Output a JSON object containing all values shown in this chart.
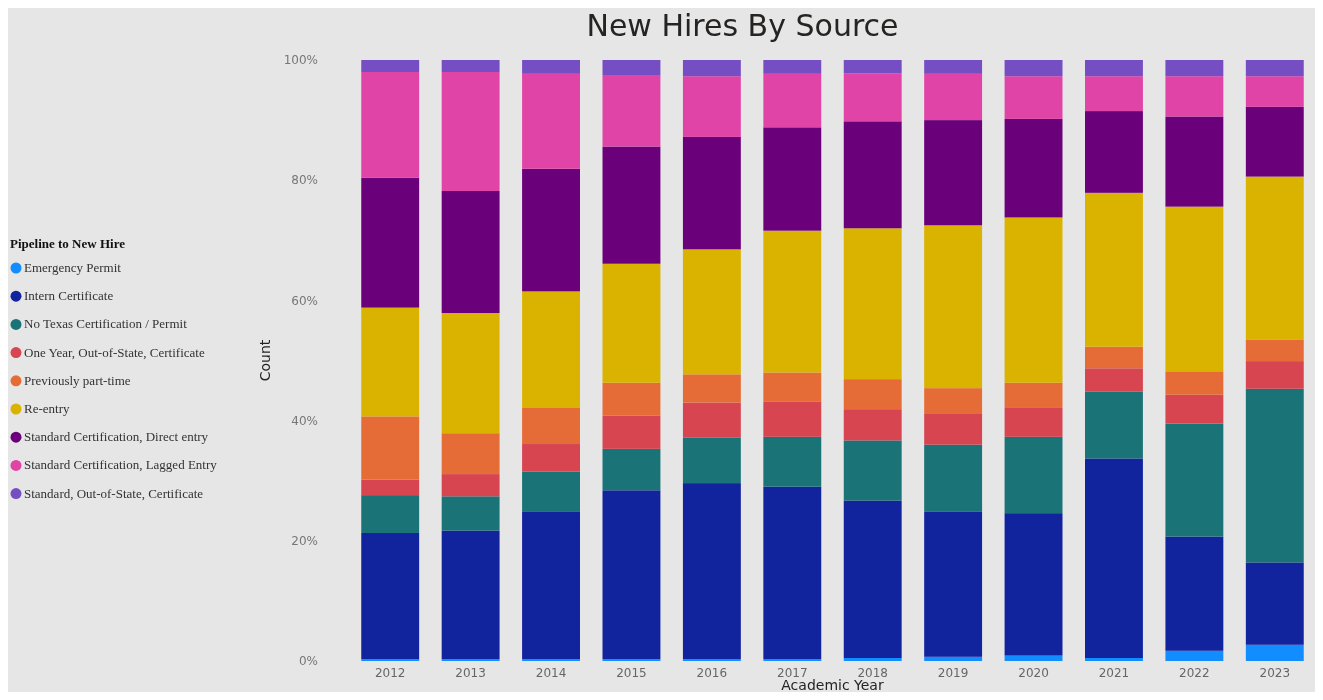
{
  "chart_data": {
    "type": "bar",
    "stacked": true,
    "title": "New Hires By Source",
    "xlabel": "Academic Year",
    "ylabel": "Count",
    "legend_title": "Pipeline to New Hire",
    "legend": "left",
    "categories": [
      "2012",
      "2013",
      "2014",
      "2015",
      "2016",
      "2017",
      "2018",
      "2019",
      "2020",
      "2021",
      "2022",
      "2023"
    ],
    "ylim": [
      0,
      100
    ],
    "yticks": [
      {
        "value": 0,
        "label": "0%"
      },
      {
        "value": 20,
        "label": "20%"
      },
      {
        "value": 40,
        "label": "40%"
      },
      {
        "value": 60,
        "label": "60%"
      },
      {
        "value": 80,
        "label": "80%"
      },
      {
        "value": 100,
        "label": "100%"
      }
    ],
    "series": [
      {
        "name": "Emergency Permit",
        "color": "#118dff",
        "values": [
          0.3,
          0.3,
          0.3,
          0.3,
          0.3,
          0.3,
          0.5,
          0.7,
          0.9,
          0.5,
          1.7,
          2.7
        ]
      },
      {
        "name": "Intern Certificate",
        "color": "#12239e",
        "values": [
          21.0,
          21.4,
          24.5,
          28.1,
          29.3,
          28.7,
          26.2,
          24.2,
          23.7,
          33.2,
          19.0,
          13.7
        ]
      },
      {
        "name": "No Texas Certification / Permit",
        "color": "#1a7377",
        "values": [
          6.3,
          5.7,
          6.7,
          6.9,
          7.6,
          8.3,
          10.0,
          11.1,
          12.7,
          11.1,
          18.8,
          28.9
        ]
      },
      {
        "name": "One Year, Out-of-State, Certificate",
        "color": "#d64550",
        "values": [
          2.6,
          3.7,
          4.6,
          5.5,
          5.8,
          5.9,
          5.2,
          5.1,
          4.8,
          3.9,
          4.8,
          4.6
        ]
      },
      {
        "name": "Previously part-time",
        "color": "#e66c37",
        "values": [
          10.5,
          6.8,
          6.0,
          5.5,
          4.7,
          4.8,
          5.0,
          4.3,
          4.2,
          3.6,
          3.9,
          3.6
        ]
      },
      {
        "name": "Re-entry",
        "color": "#d9b300",
        "values": [
          18.1,
          20.0,
          19.4,
          19.8,
          20.8,
          23.6,
          25.1,
          27.1,
          27.5,
          25.6,
          27.4,
          27.1
        ]
      },
      {
        "name": "Standard Certification, Direct entry",
        "color": "#6b007b",
        "values": [
          21.6,
          20.3,
          20.4,
          19.5,
          18.7,
          17.2,
          17.8,
          17.5,
          16.4,
          13.6,
          15.0,
          11.6
        ]
      },
      {
        "name": "Standard Certification, Lagged Entry",
        "color": "#e044a7",
        "values": [
          17.6,
          19.8,
          15.8,
          11.9,
          10.1,
          8.9,
          8.0,
          7.7,
          7.1,
          5.8,
          6.7,
          5.1
        ]
      },
      {
        "name": "Standard, Out-of-State, Certificate",
        "color": "#744ec2",
        "values": [
          2.0,
          2.0,
          2.3,
          2.5,
          2.7,
          2.3,
          2.2,
          2.3,
          2.7,
          2.7,
          2.7,
          2.7
        ]
      }
    ]
  }
}
